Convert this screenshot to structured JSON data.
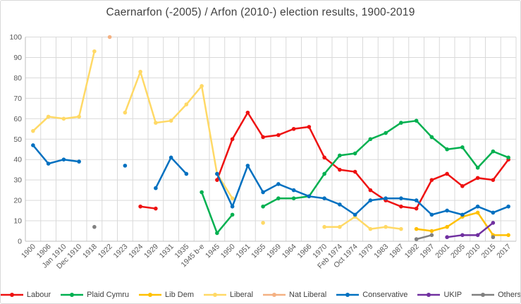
{
  "title": "Caernarfon (-2005) / Arfon (2010-) election results, 1900-2019",
  "styles": {
    "background": "#ffffff",
    "border_color": "#d9d9d9",
    "grid_color": "#d9d9d9",
    "axis_line_color": "#bfbfbf",
    "axis_text_color": "#595959",
    "title_color": "#404040",
    "legend_text_color": "#404040"
  },
  "chart_data": {
    "type": "line",
    "title": "Caernarfon (-2005) / Arfon (2010-) election results, 1900-2019",
    "xlabel": "",
    "ylabel": "",
    "grid": true,
    "legend_position": "bottom",
    "y_axis": {
      "min": 0,
      "max": 100,
      "step": 10,
      "tick_labels": [
        "100",
        "90",
        "80",
        "70",
        "60",
        "50",
        "40",
        "30",
        "20",
        "10",
        "0"
      ]
    },
    "categories": [
      "1900",
      "1906",
      "Jan 1910",
      "Dec 1910",
      "1918",
      "1922",
      "1923",
      "1924",
      "1929",
      "1931",
      "1935",
      "1945 b-e",
      "1945",
      "1950",
      "1951",
      "1955",
      "1959",
      "1964",
      "1966",
      "1970",
      "Feb 1974",
      "Oct 1974",
      "1979",
      "1983",
      "1987",
      "1992",
      "1997",
      "2001",
      "2005",
      "2010",
      "2015",
      "2017"
    ],
    "series": [
      {
        "name": "Labour",
        "color": "#ee1111",
        "values": [
          null,
          null,
          null,
          null,
          null,
          null,
          null,
          17,
          16,
          null,
          null,
          null,
          30,
          50,
          63,
          51,
          52,
          55,
          56,
          41,
          35,
          34,
          25,
          20,
          17,
          16,
          30,
          33,
          27,
          31,
          30,
          40
        ]
      },
      {
        "name": "Plaid Cymru",
        "color": "#00b050",
        "values": [
          null,
          null,
          null,
          null,
          null,
          null,
          null,
          null,
          null,
          null,
          null,
          24,
          4,
          13,
          null,
          17,
          21,
          21,
          22,
          33,
          42,
          43,
          50,
          53,
          58,
          59,
          51,
          45,
          46,
          36,
          44,
          41
        ]
      },
      {
        "name": "Lib Dem",
        "color": "#ffc000",
        "values": [
          null,
          null,
          null,
          null,
          null,
          null,
          null,
          null,
          null,
          null,
          null,
          null,
          null,
          null,
          null,
          null,
          null,
          null,
          null,
          null,
          null,
          null,
          null,
          null,
          null,
          6,
          5,
          7,
          12,
          14,
          3,
          3
        ]
      },
      {
        "name": "Liberal",
        "color": "#ffd966",
        "values": [
          54,
          61,
          60,
          61,
          93,
          null,
          63,
          83,
          58,
          59,
          67,
          76,
          33,
          21,
          null,
          9,
          null,
          null,
          null,
          7,
          7,
          12,
          6,
          7,
          6,
          null,
          null,
          null,
          null,
          null,
          null,
          null
        ]
      },
      {
        "name": "Nat Liberal",
        "color": "#f4b183",
        "values": [
          null,
          null,
          null,
          null,
          null,
          100,
          null,
          null,
          null,
          null,
          null,
          null,
          null,
          null,
          null,
          null,
          null,
          null,
          null,
          null,
          null,
          null,
          null,
          null,
          null,
          null,
          null,
          null,
          null,
          null,
          null,
          null
        ]
      },
      {
        "name": "Conservative",
        "color": "#0070c0",
        "values": [
          47,
          38,
          40,
          39,
          null,
          null,
          37,
          null,
          26,
          41,
          33,
          null,
          33,
          17,
          37,
          24,
          28,
          25,
          22,
          21,
          18,
          13,
          20,
          21,
          21,
          20,
          13,
          15,
          13,
          17,
          14,
          17
        ]
      },
      {
        "name": "UKIP",
        "color": "#7030a0",
        "values": [
          null,
          null,
          null,
          null,
          null,
          null,
          null,
          null,
          null,
          null,
          null,
          null,
          null,
          null,
          null,
          null,
          null,
          null,
          null,
          null,
          null,
          null,
          null,
          null,
          null,
          null,
          null,
          2,
          3,
          3,
          9,
          null
        ]
      },
      {
        "name": "Others",
        "color": "#808080",
        "values": [
          null,
          null,
          null,
          null,
          7,
          null,
          null,
          null,
          null,
          null,
          null,
          null,
          null,
          null,
          null,
          null,
          null,
          null,
          null,
          null,
          null,
          null,
          null,
          null,
          null,
          1,
          3,
          null,
          null,
          null,
          2,
          null
        ]
      }
    ]
  }
}
